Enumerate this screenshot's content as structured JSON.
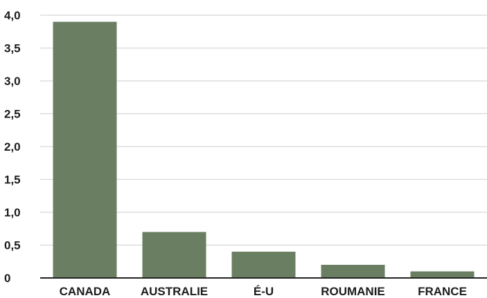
{
  "chart_data": {
    "type": "bar",
    "categories": [
      "CANADA",
      "AUSTRALIE",
      "É-U",
      "ROUMANIE",
      "FRANCE"
    ],
    "values": [
      3.9,
      0.7,
      0.4,
      0.2,
      0.1
    ],
    "y_ticks": [
      "0",
      "0,5",
      "1,0",
      "1,5",
      "2,0",
      "2,5",
      "3,0",
      "3,5",
      "4,0"
    ],
    "ylim": [
      0,
      4
    ],
    "grid": true,
    "bar_color": "#6a7f61",
    "grid_color": "#d8d8d8",
    "axis_color": "#222222"
  }
}
